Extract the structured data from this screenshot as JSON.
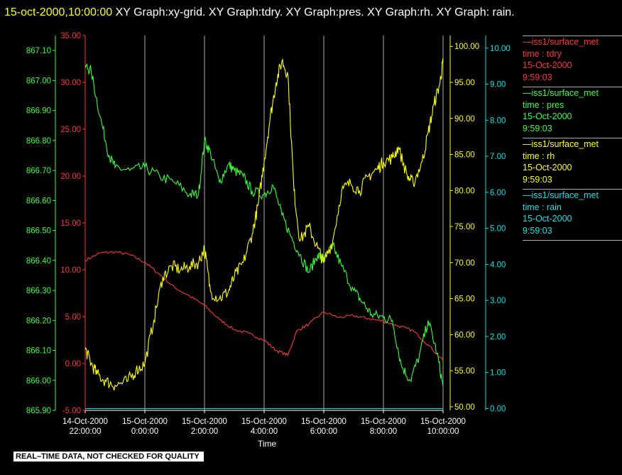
{
  "header": {
    "timestamp": "15-oct-2000,10:00:00",
    "graphs": "XY Graph:xy-grid.  XY Graph:tdry.  XY Graph:pres.  XY Graph:rh.  XY Graph: rain."
  },
  "colors": {
    "tdry": "#ff3333",
    "pres": "#33ff33",
    "rh": "#ffff00",
    "rain": "#00e5e5",
    "grid": "#ffffff"
  },
  "legend": [
    {
      "line1": "—iss1/surface_met",
      "line2": "time : tdry",
      "line3": "15-Oct-2000",
      "line4": "9:59:03",
      "color": "#ff3333"
    },
    {
      "line1": "—iss1/surface_met",
      "line2": "time : pres",
      "line3": "15-Oct-2000",
      "line4": "9:59:03",
      "color": "#33ff33"
    },
    {
      "line1": "—iss1/surface_met",
      "line2": "time : rh",
      "line3": "15-Oct-2000",
      "line4": "9:59:03",
      "color": "#ffff00"
    },
    {
      "line1": "—iss1/surface_met",
      "line2": "time : rain",
      "line3": "15-Oct-2000",
      "line4": "9:59:03",
      "color": "#00e5e5"
    }
  ],
  "disclaimer": "REAL–TIME DATA, NOT CHECKED FOR QUALITY",
  "chart_data": {
    "type": "line",
    "xlabel": "Time",
    "x_ticks": [
      {
        "hour": -2,
        "line1": "14-Oct-2000",
        "line2": "22:00:00"
      },
      {
        "hour": 0,
        "line1": "15-Oct-2000",
        "line2": "0:00:00"
      },
      {
        "hour": 2,
        "line1": "15-Oct-2000",
        "line2": "2:00:00"
      },
      {
        "hour": 4,
        "line1": "15-Oct-2000",
        "line2": "4:00:00"
      },
      {
        "hour": 6,
        "line1": "15-Oct-2000",
        "line2": "6:00:00"
      },
      {
        "hour": 8,
        "line1": "15-Oct-2000",
        "line2": "8:00:00"
      },
      {
        "hour": 10,
        "line1": "15-Oct-2000",
        "line2": "10:00:00"
      }
    ],
    "x_range_hours": [
      -2,
      10
    ],
    "grid": "vertical",
    "axes": {
      "tdry": {
        "range": [
          -5,
          35
        ],
        "ticks": [
          "-5.00",
          "0.00",
          "5.00",
          "10.00",
          "15.00",
          "20.00",
          "25.00",
          "30.00",
          "35.00"
        ],
        "side": "left"
      },
      "pres": {
        "range": [
          865.9,
          867.15
        ],
        "ticks": [
          "865.90",
          "866.00",
          "866.10",
          "866.20",
          "866.30",
          "866.40",
          "866.50",
          "866.60",
          "866.70",
          "866.80",
          "866.90",
          "867.00",
          "867.10"
        ],
        "side": "left"
      },
      "rh": {
        "range": [
          49.5,
          101.5
        ],
        "ticks": [
          "50.00",
          "55.00",
          "60.00",
          "65.00",
          "70.00",
          "75.00",
          "80.00",
          "85.00",
          "90.00",
          "95.00",
          "100.00"
        ],
        "side": "right"
      },
      "rain": {
        "range": [
          -0.05,
          10.35
        ],
        "ticks": [
          "0.00",
          "1.00",
          "2.00",
          "3.00",
          "4.00",
          "5.00",
          "6.00",
          "7.00",
          "8.00",
          "9.00",
          "10.00"
        ],
        "side": "right"
      }
    },
    "series": [
      {
        "key": "tdry",
        "x": [
          -2,
          -1.5,
          -1,
          -0.5,
          0,
          0.5,
          1,
          1.5,
          2,
          2.5,
          3,
          3.5,
          4,
          4.4,
          4.8,
          5.1,
          5.5,
          6,
          6.5,
          7,
          7.5,
          8,
          8.5,
          9,
          9.5,
          10
        ],
        "y": [
          11,
          11.8,
          11.9,
          11.6,
          10.8,
          9.5,
          8.1,
          7.2,
          6.2,
          4.7,
          3.6,
          3.2,
          2.5,
          1.4,
          0.9,
          3.5,
          4.2,
          5.5,
          4.9,
          5.1,
          4.8,
          4.5,
          4.0,
          3.5,
          2.0,
          0.3
        ]
      },
      {
        "key": "pres",
        "x": [
          -2,
          -1.8,
          -1.5,
          -1.2,
          -1,
          -0.5,
          0,
          0.5,
          1,
          1.5,
          1.8,
          2,
          2.2,
          2.5,
          2.8,
          3,
          3.3,
          3.6,
          4,
          4.3,
          4.6,
          4.9,
          5.2,
          5.5,
          5.8,
          6,
          6.3,
          6.6,
          7,
          7.3,
          7.6,
          8,
          8.3,
          8.6,
          8.9,
          9.2,
          9.5,
          9.8,
          10
        ],
        "y": [
          867.05,
          867.03,
          866.88,
          866.75,
          866.71,
          866.7,
          866.71,
          866.68,
          866.66,
          866.62,
          866.62,
          866.8,
          866.76,
          866.66,
          866.72,
          866.7,
          866.68,
          866.63,
          866.62,
          866.65,
          866.55,
          866.48,
          866.42,
          866.36,
          866.42,
          866.4,
          866.45,
          866.38,
          866.3,
          866.26,
          866.22,
          866.21,
          866.2,
          866.05,
          866.0,
          866.08,
          866.2,
          866.09,
          865.98
        ]
      },
      {
        "key": "rh",
        "x": [
          -2,
          -1.8,
          -1.6,
          -1.3,
          -1,
          -0.6,
          -0.3,
          0,
          0.3,
          0.6,
          0.9,
          1.2,
          1.5,
          1.8,
          2,
          2.2,
          2.5,
          2.8,
          3,
          3.3,
          3.6,
          3.8,
          4,
          4.2,
          4.4,
          4.6,
          4.8,
          5,
          5.2,
          5.5,
          5.8,
          6,
          6.3,
          6.6,
          6.9,
          7.2,
          7.5,
          7.8,
          8,
          8.3,
          8.5,
          8.8,
          9,
          9.3,
          9.5,
          9.7,
          9.9,
          10
        ],
        "y": [
          58,
          56,
          54.5,
          53.5,
          53,
          53.5,
          55,
          56,
          62,
          68,
          69.5,
          69,
          69.5,
          70,
          72,
          66,
          65,
          66,
          68,
          70,
          74,
          78,
          84,
          90,
          95,
          98,
          96,
          80,
          73,
          75,
          72,
          70,
          73,
          80,
          81,
          80,
          82,
          83,
          84,
          84.5,
          86,
          82,
          81,
          84,
          88,
          92,
          95,
          98
        ]
      },
      {
        "key": "rain",
        "x": [
          -2,
          10
        ],
        "y": [
          0,
          0
        ]
      }
    ]
  }
}
